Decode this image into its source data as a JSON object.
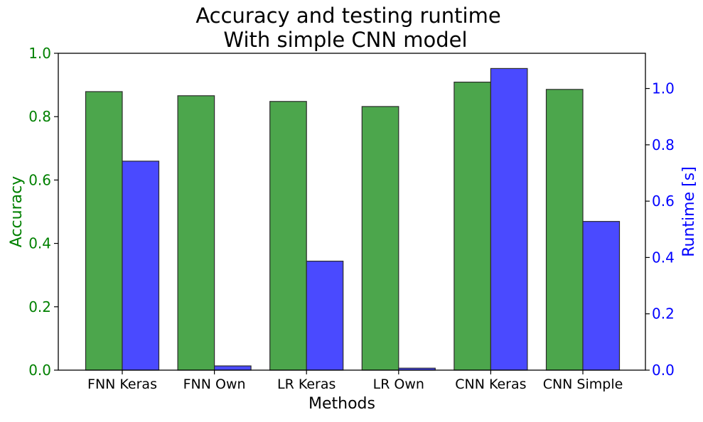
{
  "chart_data": {
    "type": "bar",
    "title_line1": "Accuracy and testing runtime",
    "title_line2": "With simple CNN model",
    "xlabel": "Methods",
    "categories": [
      "FNN Keras",
      "FNN Own",
      "LR Keras",
      "LR Own",
      "CNN Keras",
      "CNN Simple"
    ],
    "left_axis": {
      "label": "Accuracy",
      "color": "#008000",
      "ylim": [
        0,
        1.0
      ],
      "ticks": [
        "0.0",
        "0.2",
        "0.4",
        "0.6",
        "0.8",
        "1.0"
      ]
    },
    "right_axis": {
      "label": "Runtime [s]",
      "color": "#0000ff",
      "ylim": [
        0,
        1.125
      ],
      "ticks": [
        "0.0",
        "0.2",
        "0.4",
        "0.6",
        "0.8",
        "1.0"
      ]
    },
    "series": [
      {
        "axis": "left",
        "color": "#4ca64c",
        "values": [
          0.879,
          0.866,
          0.848,
          0.832,
          0.909,
          0.886
        ]
      },
      {
        "axis": "right",
        "color": "#4a4aff",
        "values": [
          0.742,
          0.015,
          0.387,
          0.007,
          1.071,
          0.528
        ]
      }
    ],
    "grid": false
  }
}
